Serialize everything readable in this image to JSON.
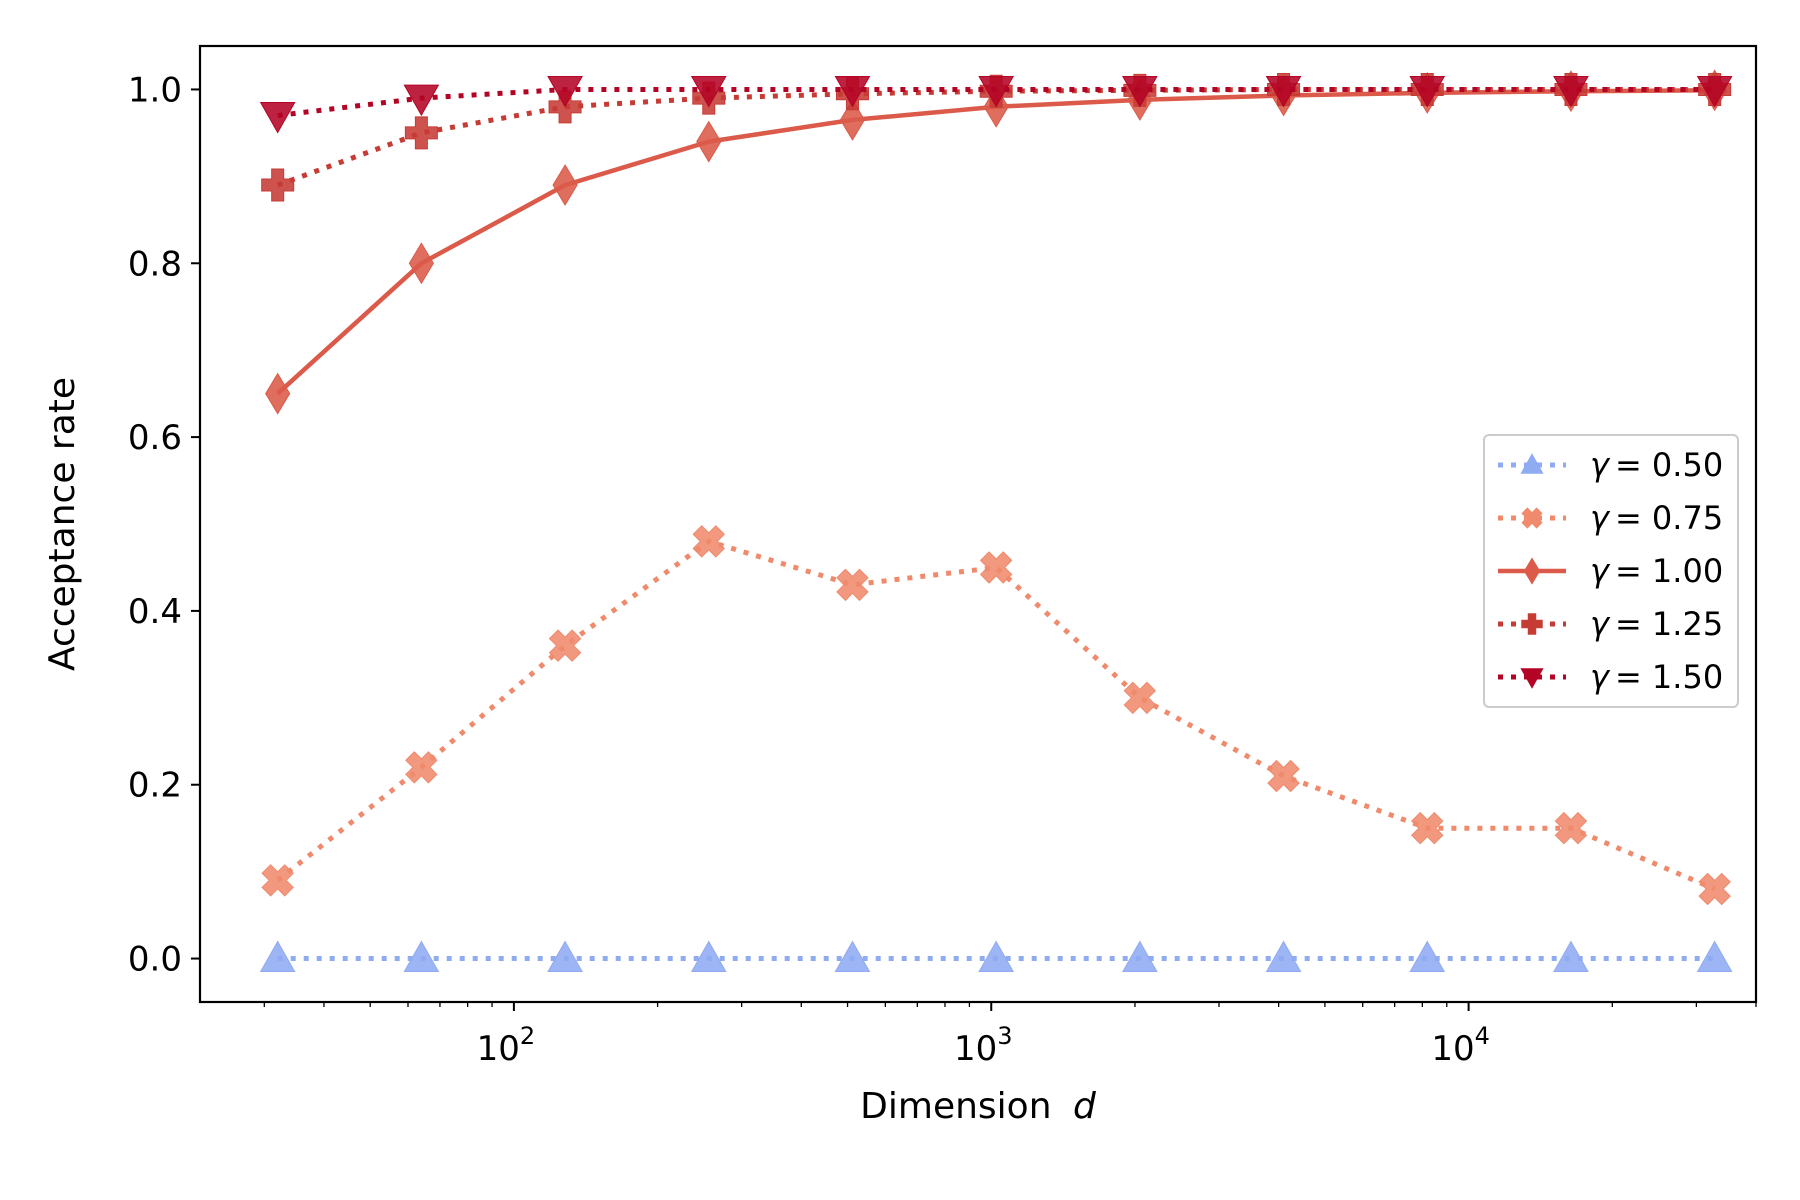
{
  "chart_data": {
    "type": "line",
    "title": "",
    "xlabel": "Dimension",
    "xlabel_var": "d",
    "ylabel": "Acceptance rate",
    "xscale": "log",
    "xlim": [
      22,
      40000
    ],
    "ylim": [
      -0.05,
      1.05
    ],
    "x": [
      32,
      64,
      128,
      256,
      512,
      1024,
      2048,
      4096,
      8192,
      16384,
      32768
    ],
    "x_ticks": [
      {
        "value": 100,
        "base": "10",
        "exp": "2"
      },
      {
        "value": 1000,
        "base": "10",
        "exp": "3"
      },
      {
        "value": 10000,
        "base": "10",
        "exp": "4"
      }
    ],
    "y_ticks": [
      {
        "value": 0.0,
        "label": "0.0"
      },
      {
        "value": 0.2,
        "label": "0.2"
      },
      {
        "value": 0.4,
        "label": "0.4"
      },
      {
        "value": 0.6,
        "label": "0.6"
      },
      {
        "value": 0.8,
        "label": "0.8"
      },
      {
        "value": 1.0,
        "label": "1.0"
      }
    ],
    "legend_position": "center-right",
    "series": [
      {
        "name": "γ = 0.50",
        "gamma": "0.50",
        "color": "#8fabf2",
        "marker": "triangle-up",
        "line": "dotted",
        "values": [
          0,
          0,
          0,
          0,
          0,
          0,
          0,
          0,
          0,
          0,
          0
        ]
      },
      {
        "name": "γ = 0.75",
        "gamma": "0.75",
        "color": "#ef8a6c",
        "marker": "x-filled",
        "line": "dotted",
        "values": [
          0.09,
          0.22,
          0.36,
          0.48,
          0.43,
          0.45,
          0.3,
          0.21,
          0.15,
          0.15,
          0.08
        ]
      },
      {
        "name": "γ = 1.00",
        "gamma": "1.00",
        "color": "#db5a49",
        "marker": "thin-diamond",
        "line": "solid",
        "values": [
          0.65,
          0.8,
          0.89,
          0.94,
          0.965,
          0.98,
          0.988,
          0.993,
          0.996,
          0.998,
          0.999
        ]
      },
      {
        "name": "γ = 1.25",
        "gamma": "1.25",
        "color": "#c73b35",
        "marker": "plus-filled",
        "line": "dotted",
        "values": [
          0.89,
          0.95,
          0.98,
          0.99,
          0.995,
          0.998,
          0.999,
          1.0,
          1.0,
          1.0,
          1.0
        ]
      },
      {
        "name": "γ = 1.50",
        "gamma": "1.50",
        "color": "#b40426",
        "marker": "triangle-down",
        "line": "dotted",
        "values": [
          0.97,
          0.99,
          1.0,
          1.0,
          1.0,
          1.0,
          1.0,
          1.0,
          1.0,
          1.0,
          1.0
        ]
      }
    ]
  }
}
